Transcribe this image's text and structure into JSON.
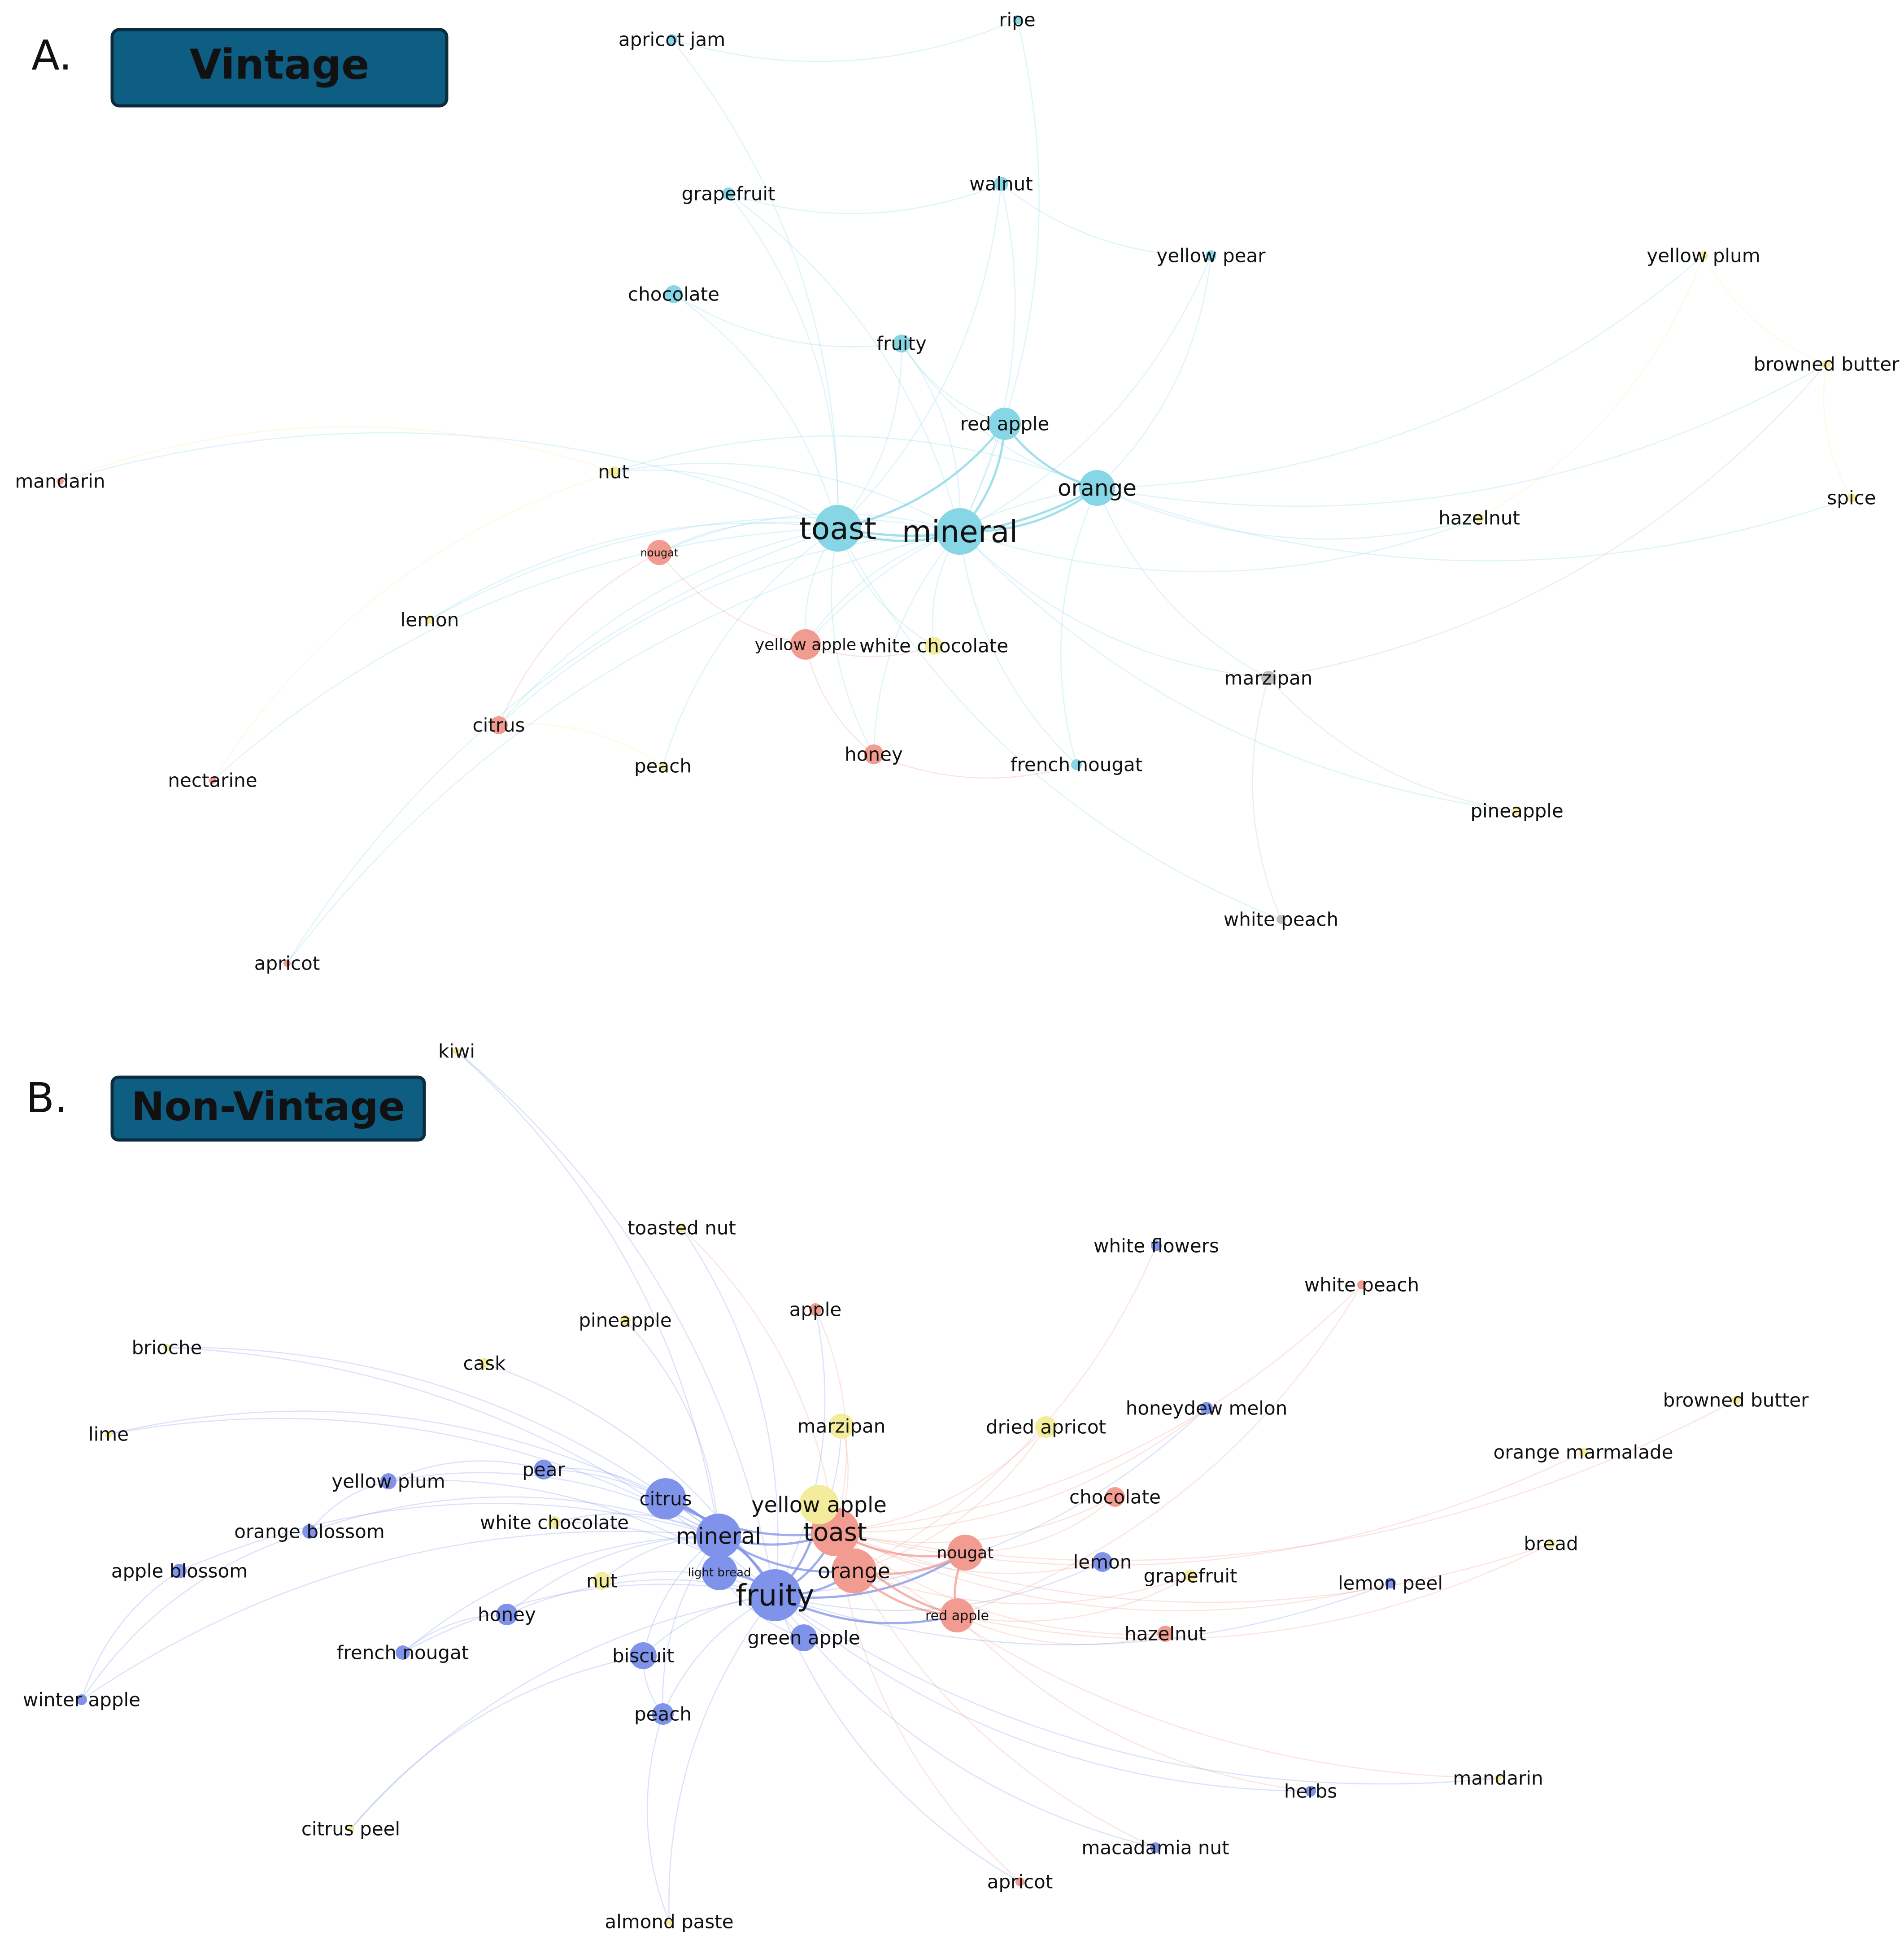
{
  "panels": [
    {
      "letter": "A.",
      "title": "Vintage",
      "palette": {
        "cyan": "#86d6e6",
        "red": "#f29b90",
        "gray": "#bfbfbf",
        "yellow": "#f3ec9a"
      },
      "nodes": [
        {
          "id": "toast",
          "label": "toast",
          "color": "cyan"
        },
        {
          "id": "mineral",
          "label": "mineral",
          "color": "cyan"
        },
        {
          "id": "orange",
          "label": "orange",
          "color": "cyan"
        },
        {
          "id": "red-apple",
          "label": "red apple",
          "color": "cyan"
        },
        {
          "id": "fruity",
          "label": "fruity",
          "color": "cyan"
        },
        {
          "id": "chocolate",
          "label": "chocolate",
          "color": "cyan"
        },
        {
          "id": "grapefruit",
          "label": "grapefruit",
          "color": "cyan"
        },
        {
          "id": "walnut",
          "label": "walnut",
          "color": "cyan"
        },
        {
          "id": "yellow-pear",
          "label": "yellow pear",
          "color": "cyan"
        },
        {
          "id": "apricot-jam",
          "label": "apricot jam",
          "color": "cyan"
        },
        {
          "id": "ripe",
          "label": "ripe",
          "color": "cyan"
        },
        {
          "id": "french-nougat",
          "label": "french nougat",
          "color": "cyan"
        },
        {
          "id": "yellow-apple",
          "label": "yellow apple",
          "color": "red"
        },
        {
          "id": "nougat",
          "label": "nougat",
          "color": "red"
        },
        {
          "id": "honey",
          "label": "honey",
          "color": "red"
        },
        {
          "id": "citrus",
          "label": "citrus",
          "color": "red"
        },
        {
          "id": "mandarin",
          "label": "mandarin",
          "color": "red"
        },
        {
          "id": "nectarine",
          "label": "nectarine",
          "color": "red"
        },
        {
          "id": "apricot",
          "label": "apricot",
          "color": "red"
        },
        {
          "id": "marzipan",
          "label": "marzipan",
          "color": "gray"
        },
        {
          "id": "white-peach",
          "label": "white peach",
          "color": "gray"
        },
        {
          "id": "white-chocolate",
          "label": "white chocolate",
          "color": "yellow"
        },
        {
          "id": "nut",
          "label": "nut",
          "color": "yellow"
        },
        {
          "id": "lemon",
          "label": "lemon",
          "color": "yellow"
        },
        {
          "id": "peach",
          "label": "peach",
          "color": "yellow"
        },
        {
          "id": "hazelnut",
          "label": "hazelnut",
          "color": "yellow"
        },
        {
          "id": "pineapple",
          "label": "pineapple",
          "color": "yellow"
        },
        {
          "id": "yellow-plum",
          "label": "yellow plum",
          "color": "yellow"
        },
        {
          "id": "browned-butter",
          "label": "browned butter",
          "color": "yellow"
        },
        {
          "id": "spice",
          "label": "spice",
          "color": "yellow"
        }
      ],
      "edges": [
        [
          "toast",
          "mineral"
        ],
        [
          "toast",
          "orange"
        ],
        [
          "mineral",
          "orange"
        ],
        [
          "toast",
          "red-apple"
        ],
        [
          "mineral",
          "red-apple"
        ],
        [
          "red-apple",
          "orange"
        ],
        [
          "toast",
          "fruity"
        ],
        [
          "mineral",
          "fruity"
        ],
        [
          "fruity",
          "red-apple"
        ],
        [
          "fruity",
          "orange"
        ],
        [
          "toast",
          "chocolate"
        ],
        [
          "toast",
          "grapefruit"
        ],
        [
          "mineral",
          "grapefruit"
        ],
        [
          "toast",
          "walnut"
        ],
        [
          "mineral",
          "walnut"
        ],
        [
          "mineral",
          "yellow-pear"
        ],
        [
          "orange",
          "yellow-pear"
        ],
        [
          "toast",
          "apricot-jam"
        ],
        [
          "mineral",
          "ripe"
        ],
        [
          "toast",
          "yellow-apple"
        ],
        [
          "mineral",
          "yellow-apple"
        ],
        [
          "orange",
          "yellow-apple"
        ],
        [
          "toast",
          "nougat"
        ],
        [
          "mineral",
          "nougat"
        ],
        [
          "toast",
          "honey"
        ],
        [
          "mineral",
          "honey"
        ],
        [
          "yellow-apple",
          "honey"
        ],
        [
          "nougat",
          "yellow-apple"
        ],
        [
          "toast",
          "citrus"
        ],
        [
          "mineral",
          "citrus"
        ],
        [
          "nougat",
          "citrus"
        ],
        [
          "toast",
          "white-chocolate"
        ],
        [
          "mineral",
          "white-chocolate"
        ],
        [
          "toast",
          "nut"
        ],
        [
          "mineral",
          "nut"
        ],
        [
          "orange",
          "nut"
        ],
        [
          "toast",
          "lemon"
        ],
        [
          "mineral",
          "lemon"
        ],
        [
          "toast",
          "peach"
        ],
        [
          "mineral",
          "french-nougat"
        ],
        [
          "orange",
          "french-nougat"
        ],
        [
          "orange",
          "marzipan"
        ],
        [
          "mineral",
          "marzipan"
        ],
        [
          "mineral",
          "hazelnut"
        ],
        [
          "orange",
          "hazelnut"
        ],
        [
          "toast",
          "mandarin"
        ],
        [
          "nut",
          "mandarin"
        ],
        [
          "toast",
          "nectarine"
        ],
        [
          "nut",
          "nectarine"
        ],
        [
          "toast",
          "apricot"
        ],
        [
          "mineral",
          "apricot"
        ],
        [
          "marzipan",
          "pineapple"
        ],
        [
          "marzipan",
          "white-peach"
        ],
        [
          "mineral",
          "pineapple"
        ],
        [
          "toast",
          "white-peach"
        ],
        [
          "orange",
          "yellow-plum"
        ],
        [
          "hazelnut",
          "yellow-plum"
        ],
        [
          "orange",
          "browned-butter"
        ],
        [
          "yellow-plum",
          "browned-butter"
        ],
        [
          "browned-butter",
          "spice"
        ],
        [
          "orange",
          "spice"
        ],
        [
          "marzipan",
          "browned-butter"
        ],
        [
          "chocolate",
          "fruity"
        ],
        [
          "grapefruit",
          "walnut"
        ],
        [
          "apricot-jam",
          "ripe"
        ],
        [
          "walnut",
          "yellow-pear"
        ],
        [
          "honey",
          "french-nougat"
        ],
        [
          "yellow-apple",
          "white-chocolate"
        ],
        [
          "peach",
          "citrus"
        ]
      ]
    },
    {
      "letter": "B.",
      "title": "Non-Vintage",
      "palette": {
        "blue": "#7f93ea",
        "red": "#f29b90",
        "yellow": "#f3ec9a"
      },
      "nodes": [
        {
          "id": "fruity",
          "label": "fruity",
          "color": "blue"
        },
        {
          "id": "mineral",
          "label": "mineral",
          "color": "blue"
        },
        {
          "id": "citrus",
          "label": "citrus",
          "color": "blue"
        },
        {
          "id": "light-bread",
          "label": "light bread",
          "color": "blue"
        },
        {
          "id": "green-apple",
          "label": "green apple",
          "color": "blue"
        },
        {
          "id": "biscuit",
          "label": "biscuit",
          "color": "blue"
        },
        {
          "id": "peach",
          "label": "peach",
          "color": "blue"
        },
        {
          "id": "honey",
          "label": "honey",
          "color": "blue"
        },
        {
          "id": "pear",
          "label": "pear",
          "color": "blue"
        },
        {
          "id": "yellow-plum",
          "label": "yellow plum",
          "color": "blue"
        },
        {
          "id": "orange-blossom",
          "label": "orange blossom",
          "color": "blue"
        },
        {
          "id": "apple-blossom",
          "label": "apple blossom",
          "color": "blue"
        },
        {
          "id": "french-nougat",
          "label": "french nougat",
          "color": "blue"
        },
        {
          "id": "winter-apple",
          "label": "winter apple",
          "color": "blue"
        },
        {
          "id": "lemon",
          "label": "lemon",
          "color": "blue"
        },
        {
          "id": "honeydew-melon",
          "label": "honeydew melon",
          "color": "blue"
        },
        {
          "id": "white-flowers",
          "label": "white flowers",
          "color": "blue"
        },
        {
          "id": "lemon-peel",
          "label": "lemon peel",
          "color": "blue"
        },
        {
          "id": "herbs",
          "label": "herbs",
          "color": "blue"
        },
        {
          "id": "macadamia-nut",
          "label": "macadamia nut",
          "color": "blue"
        },
        {
          "id": "toast",
          "label": "toast",
          "color": "red"
        },
        {
          "id": "orange",
          "label": "orange",
          "color": "red"
        },
        {
          "id": "nougat",
          "label": "nougat",
          "color": "red"
        },
        {
          "id": "red-apple",
          "label": "red apple",
          "color": "red"
        },
        {
          "id": "chocolate",
          "label": "chocolate",
          "color": "red"
        },
        {
          "id": "hazelnut",
          "label": "hazelnut",
          "color": "red"
        },
        {
          "id": "apple",
          "label": "apple",
          "color": "red"
        },
        {
          "id": "white-peach",
          "label": "white peach",
          "color": "red"
        },
        {
          "id": "apricot",
          "label": "apricot",
          "color": "red"
        },
        {
          "id": "yellow-apple",
          "label": "yellow apple",
          "color": "yellow"
        },
        {
          "id": "marzipan",
          "label": "marzipan",
          "color": "yellow"
        },
        {
          "id": "dried-apricot",
          "label": "dried apricot",
          "color": "yellow"
        },
        {
          "id": "nut",
          "label": "nut",
          "color": "yellow"
        },
        {
          "id": "white-chocolate",
          "label": "white chocolate",
          "color": "yellow"
        },
        {
          "id": "cask",
          "label": "cask",
          "color": "yellow"
        },
        {
          "id": "pineapple",
          "label": "pineapple",
          "color": "yellow"
        },
        {
          "id": "toasted-nut",
          "label": "toasted nut",
          "color": "yellow"
        },
        {
          "id": "grapefruit",
          "label": "grapefruit",
          "color": "yellow"
        },
        {
          "id": "bread",
          "label": "bread",
          "color": "yellow"
        },
        {
          "id": "browned-butter",
          "label": "browned butter",
          "color": "yellow"
        },
        {
          "id": "orange-marmalade",
          "label": "orange marmalade",
          "color": "yellow"
        },
        {
          "id": "brioche",
          "label": "brioche",
          "color": "yellow"
        },
        {
          "id": "lime",
          "label": "lime",
          "color": "yellow"
        },
        {
          "id": "kiwi",
          "label": "kiwi",
          "color": "yellow"
        },
        {
          "id": "citrus-peel",
          "label": "citrus peel",
          "color": "yellow"
        },
        {
          "id": "almond-paste",
          "label": "almond paste",
          "color": "yellow"
        },
        {
          "id": "mandarin",
          "label": "mandarin",
          "color": "yellow"
        }
      ],
      "edges": [
        [
          "fruity",
          "mineral"
        ],
        [
          "fruity",
          "citrus"
        ],
        [
          "fruity",
          "light-bread"
        ],
        [
          "fruity",
          "green-apple"
        ],
        [
          "fruity",
          "biscuit"
        ],
        [
          "fruity",
          "toast"
        ],
        [
          "fruity",
          "orange"
        ],
        [
          "fruity",
          "nougat"
        ],
        [
          "fruity",
          "red-apple"
        ],
        [
          "fruity",
          "yellow-apple"
        ],
        [
          "mineral",
          "citrus"
        ],
        [
          "mineral",
          "light-bread"
        ],
        [
          "mineral",
          "toast"
        ],
        [
          "mineral",
          "orange"
        ],
        [
          "mineral",
          "honey"
        ],
        [
          "mineral",
          "biscuit"
        ],
        [
          "mineral",
          "pear"
        ],
        [
          "mineral",
          "yellow-plum"
        ],
        [
          "citrus",
          "toast"
        ],
        [
          "citrus",
          "pear"
        ],
        [
          "toast",
          "orange"
        ],
        [
          "toast",
          "nougat"
        ],
        [
          "toast",
          "red-apple"
        ],
        [
          "toast",
          "yellow-apple"
        ],
        [
          "orange",
          "nougat"
        ],
        [
          "orange",
          "red-apple"
        ],
        [
          "nougat",
          "red-apple"
        ],
        [
          "toast",
          "chocolate"
        ],
        [
          "nougat",
          "chocolate"
        ],
        [
          "red-apple",
          "hazelnut"
        ],
        [
          "toast",
          "hazelnut"
        ],
        [
          "mineral",
          "peach"
        ],
        [
          "fruity",
          "peach"
        ],
        [
          "biscuit",
          "peach"
        ],
        [
          "fruity",
          "honey"
        ],
        [
          "mineral",
          "french-nougat"
        ],
        [
          "fruity",
          "french-nougat"
        ],
        [
          "mineral",
          "orange-blossom"
        ],
        [
          "mineral",
          "apple-blossom"
        ],
        [
          "fruity",
          "yellow-plum"
        ],
        [
          "fruity",
          "marzipan"
        ],
        [
          "toast",
          "marzipan"
        ],
        [
          "toast",
          "dried-apricot"
        ],
        [
          "orange",
          "dried-apricot"
        ],
        [
          "fruity",
          "nut"
        ],
        [
          "mineral",
          "nut"
        ],
        [
          "mineral",
          "white-chocolate"
        ],
        [
          "fruity",
          "white-chocolate"
        ],
        [
          "toast",
          "lemon"
        ],
        [
          "fruity",
          "lemon"
        ],
        [
          "orange",
          "grapefruit"
        ],
        [
          "red-apple",
          "grapefruit"
        ],
        [
          "fruity",
          "cask"
        ],
        [
          "mineral",
          "pineapple"
        ],
        [
          "toast",
          "apple"
        ],
        [
          "fruity",
          "apple"
        ],
        [
          "toast",
          "toasted-nut"
        ],
        [
          "fruity",
          "toasted-nut"
        ],
        [
          "toast",
          "honeydew-melon"
        ],
        [
          "fruity",
          "honeydew-melon"
        ],
        [
          "orange",
          "white-flowers"
        ],
        [
          "toast",
          "white-peach"
        ],
        [
          "red-apple",
          "white-peach"
        ],
        [
          "toast",
          "lemon-peel"
        ],
        [
          "fruity",
          "lemon-peel"
        ],
        [
          "red-apple",
          "bread"
        ],
        [
          "toast",
          "bread"
        ],
        [
          "toast",
          "orange-marmalade"
        ],
        [
          "toast",
          "browned-butter"
        ],
        [
          "fruity",
          "herbs"
        ],
        [
          "red-apple",
          "herbs"
        ],
        [
          "fruity",
          "macadamia-nut"
        ],
        [
          "toast",
          "macadamia-nut"
        ],
        [
          "toast",
          "apricot"
        ],
        [
          "fruity",
          "apricot"
        ],
        [
          "toast",
          "mandarin"
        ],
        [
          "fruity",
          "mandarin"
        ],
        [
          "mineral",
          "brioche"
        ],
        [
          "fruity",
          "brioche"
        ],
        [
          "mineral",
          "lime"
        ],
        [
          "citrus",
          "lime"
        ],
        [
          "mineral",
          "kiwi"
        ],
        [
          "fruity",
          "kiwi"
        ],
        [
          "biscuit",
          "citrus-peel"
        ],
        [
          "fruity",
          "citrus-peel"
        ],
        [
          "peach",
          "almond-paste"
        ],
        [
          "fruity",
          "almond-paste"
        ],
        [
          "apple-blossom",
          "winter-apple"
        ],
        [
          "orange-blossom",
          "winter-apple"
        ],
        [
          "mineral",
          "winter-apple"
        ],
        [
          "yellow-plum",
          "orange-blossom"
        ],
        [
          "pear",
          "yellow-plum"
        ],
        [
          "honey",
          "french-nougat"
        ],
        [
          "light-bread",
          "green-apple"
        ]
      ]
    }
  ]
}
